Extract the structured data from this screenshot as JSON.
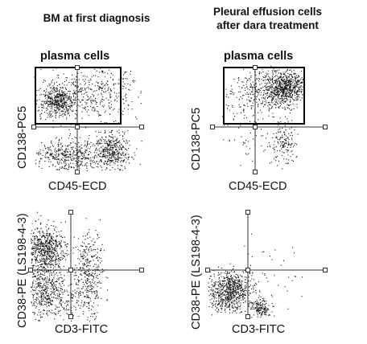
{
  "columns": [
    {
      "title": "BM at first diagnosis"
    },
    {
      "title_line1": "Pleural effusion cells",
      "title_line2": "after dara treatment"
    }
  ],
  "panels": [
    {
      "id": "tl",
      "xlabel": "CD45-ECD",
      "ylabel": "CD138-PC5",
      "gate_label": "plasma cells"
    },
    {
      "id": "tr",
      "xlabel": "CD45-ECD",
      "ylabel": "CD138-PC5",
      "gate_label": "plasma cells"
    },
    {
      "id": "bl",
      "xlabel": "CD3-FITC",
      "ylabel": "CD38-PE (LS198-4-3)"
    },
    {
      "id": "br",
      "xlabel": "CD3-FITC",
      "ylabel": "CD38-PE (LS198-4-3)"
    }
  ],
  "colors": {
    "dots": "#111111",
    "gate": "#000000",
    "quadrant": "#333333"
  }
}
